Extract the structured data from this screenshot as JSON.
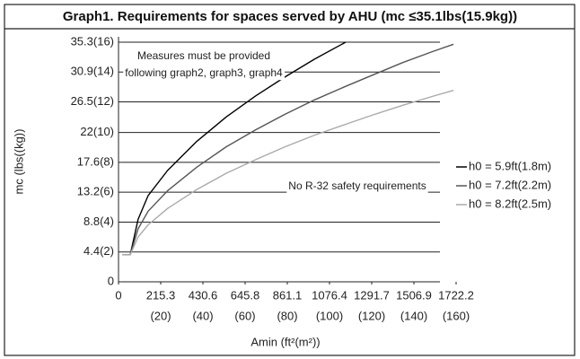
{
  "chart_data": {
    "type": "line",
    "title": "Graph1. Requirements for spaces served by AHU (mc ≤35.1lbs(15.9kg))",
    "y_label": "mc (lbs((kg))",
    "x_label": "Amin (ft²(m²))",
    "annotations": [
      "Measures must be provided",
      "following graph2, graph3, graph4",
      "No R-32 safety requirements"
    ],
    "x": [
      20,
      60,
      100,
      151,
      250,
      400,
      550,
      700,
      850,
      1000,
      1159,
      1300,
      1450,
      1600,
      1709
    ],
    "series": [
      {
        "name": "h0 = 5.9ft(1.8m)",
        "color": "#000000",
        "values": [
          4.0,
          4.0,
          9.2,
          12.7,
          16.4,
          20.7,
          24.3,
          27.4,
          30.2,
          32.8,
          35.3,
          null,
          null,
          null,
          null
        ]
      },
      {
        "name": "h0 = 7.2ft(2.2m)",
        "color": "#555555",
        "values": [
          4.0,
          4.0,
          7.8,
          10.4,
          13.4,
          16.9,
          19.9,
          22.4,
          24.7,
          26.8,
          28.8,
          30.5,
          32.3,
          33.9,
          35.0
        ]
      },
      {
        "name": "h0 = 8.2ft(2.5m)",
        "color": "#aaaaaa",
        "values": [
          4.0,
          4.0,
          6.6,
          8.4,
          10.8,
          13.6,
          16.0,
          18.0,
          19.9,
          21.6,
          23.2,
          24.6,
          26.0,
          27.3,
          28.2
        ]
      }
    ],
    "xlim": [
      0,
      1722.2
    ],
    "xticks": [
      0,
      {
        "value": 215.3,
        "label": "215.3",
        "sublabel": "(20)"
      },
      {
        "value": 430.6,
        "label": "430.6",
        "sublabel": "(40)"
      },
      {
        "value": 645.8,
        "label": "645.8",
        "sublabel": "(60)"
      },
      {
        "value": 861.1,
        "label": "861.1",
        "sublabel": "(80)"
      },
      {
        "value": 1076.4,
        "label": "1076.4",
        "sublabel": "(100)"
      },
      {
        "value": 1291.7,
        "label": "1291.7",
        "sublabel": "(120)"
      },
      {
        "value": 1506.9,
        "label": "1506.9",
        "sublabel": "(140)"
      },
      {
        "value": 1722.2,
        "label": "1722.2",
        "sublabel": "(160)"
      }
    ],
    "ylim": [
      0,
      35.3
    ],
    "yticks": [
      0,
      {
        "value": 4.4,
        "label": "4.4(2)"
      },
      {
        "value": 8.8,
        "label": "8.8(4)"
      },
      {
        "value": 13.2,
        "label": "13.2(6)"
      },
      {
        "value": 17.6,
        "label": "17.6(8)"
      },
      {
        "value": 22,
        "label": "22(10)"
      },
      {
        "value": 26.5,
        "label": "26.5(12)"
      },
      {
        "value": 30.9,
        "label": "30.9(14)"
      },
      {
        "value": 35.3,
        "label": "35.3(16)"
      }
    ],
    "grid": true,
    "legend": "right"
  }
}
